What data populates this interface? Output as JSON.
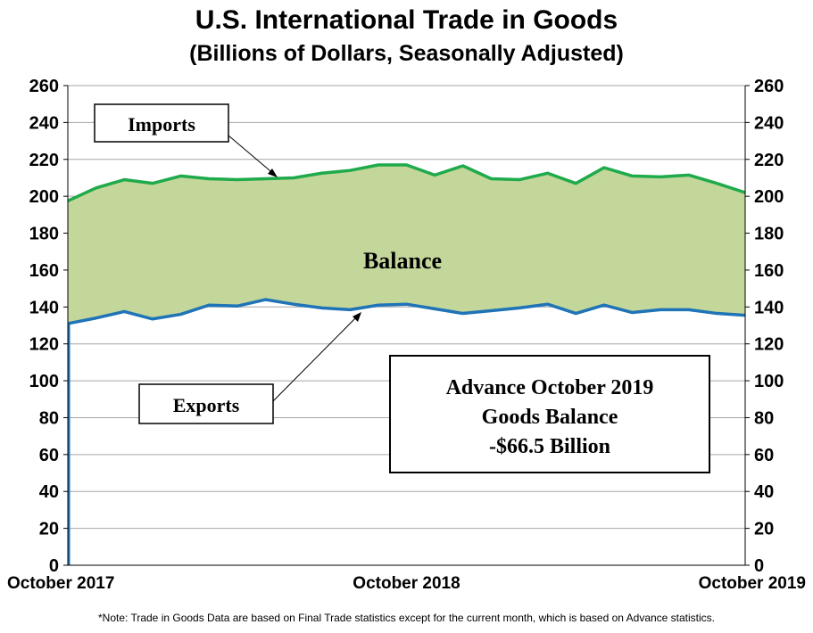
{
  "chart_data": {
    "type": "area",
    "title": "U.S. International Trade in Goods",
    "subtitle": "(Billions of Dollars, Seasonally Adjusted)",
    "ylim": [
      0,
      260
    ],
    "yticks": [
      0,
      20,
      40,
      60,
      80,
      100,
      120,
      140,
      160,
      180,
      200,
      220,
      240,
      260
    ],
    "x_tick_labels": [
      "October 2017",
      "October 2018",
      "October 2019"
    ],
    "x_tick_indices": [
      0,
      12,
      24
    ],
    "categories": [
      "Oct 2017",
      "Nov 2017",
      "Dec 2017",
      "Jan 2018",
      "Feb 2018",
      "Mar 2018",
      "Apr 2018",
      "May 2018",
      "Jun 2018",
      "Jul 2018",
      "Aug 2018",
      "Sep 2018",
      "Oct 2018",
      "Nov 2018",
      "Dec 2018",
      "Jan 2019",
      "Feb 2019",
      "Mar 2019",
      "Apr 2019",
      "May 2019",
      "Jun 2019",
      "Jul 2019",
      "Aug 2019",
      "Sep 2019",
      "Oct 2019"
    ],
    "series": [
      {
        "name": "Imports",
        "color": "#1faa4b",
        "values": [
          197.5,
          204.5,
          209,
          207,
          211,
          209.5,
          209,
          209.5,
          210,
          212.5,
          214,
          217,
          217,
          211.5,
          216.5,
          209.5,
          209,
          212.5,
          207,
          215.5,
          211,
          210.5,
          211.5,
          207,
          202
        ]
      },
      {
        "name": "Exports",
        "color": "#1f73b7",
        "values": [
          131,
          134,
          137.5,
          133.5,
          136,
          141,
          140.5,
          144,
          141.5,
          139.5,
          138.5,
          141,
          141.5,
          139,
          136.5,
          138,
          139.5,
          141.5,
          136.5,
          141,
          137,
          138.5,
          138.5,
          136.5,
          135.5
        ]
      }
    ],
    "balance_fill_color": "#c4d79b",
    "annotations": {
      "imports_label": "Imports",
      "exports_label": "Exports",
      "balance_label": "Balance",
      "callout_lines": [
        "Advance October 2019",
        "Goods Balance",
        "-$66.5 Billion"
      ]
    }
  },
  "footnote": "*Note: Trade in Goods Data are based on Final Trade statistics except for the current month, which is based on Advance statistics."
}
